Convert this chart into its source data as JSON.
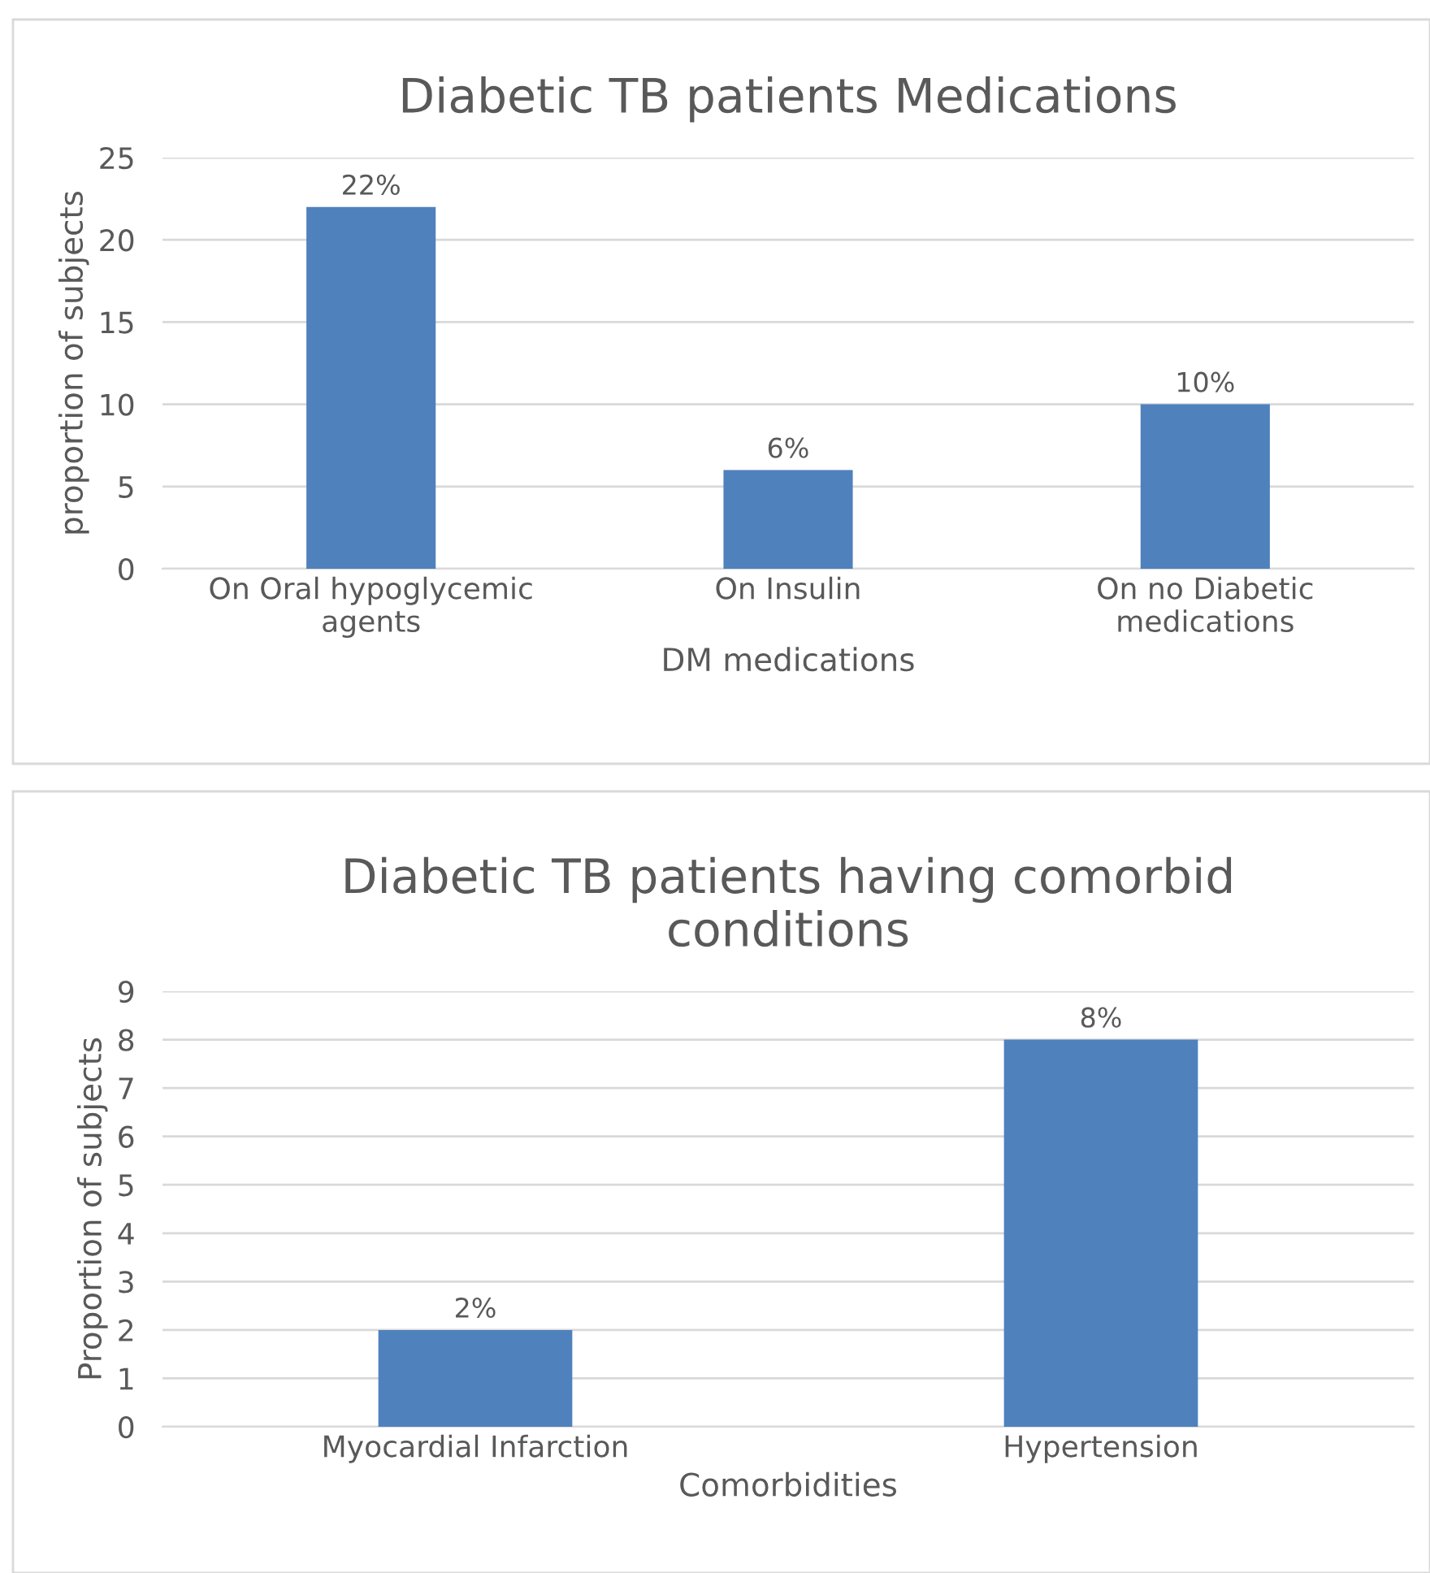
{
  "chart_data": [
    {
      "type": "bar",
      "title": "Diabetic TB patients Medications",
      "xlabel": "DM medications",
      "ylabel": "proportion of subjects",
      "categories": [
        "On Oral hypoglycemic\nagents",
        "On Insulin",
        "On no Diabetic\nmedications"
      ],
      "values": [
        22,
        6,
        10
      ],
      "value_labels": [
        "22%",
        "6%",
        "10%"
      ],
      "color": "#4f81bd",
      "ylim": [
        0,
        25
      ],
      "yticks": [
        0,
        5,
        10,
        15,
        20,
        25
      ],
      "grid": "y"
    },
    {
      "type": "bar",
      "title": "Diabetic TB patients having comorbid\nconditions",
      "xlabel": "Comorbidities",
      "ylabel": "Proportion of subjects",
      "categories": [
        "Myocardial Infarction",
        "Hypertension"
      ],
      "values": [
        2,
        8
      ],
      "value_labels": [
        "2%",
        "8%"
      ],
      "color": "#4f81bd",
      "ylim": [
        0,
        9
      ],
      "yticks": [
        0,
        1,
        2,
        3,
        4,
        5,
        6,
        7,
        8,
        9
      ],
      "grid": "y"
    }
  ]
}
